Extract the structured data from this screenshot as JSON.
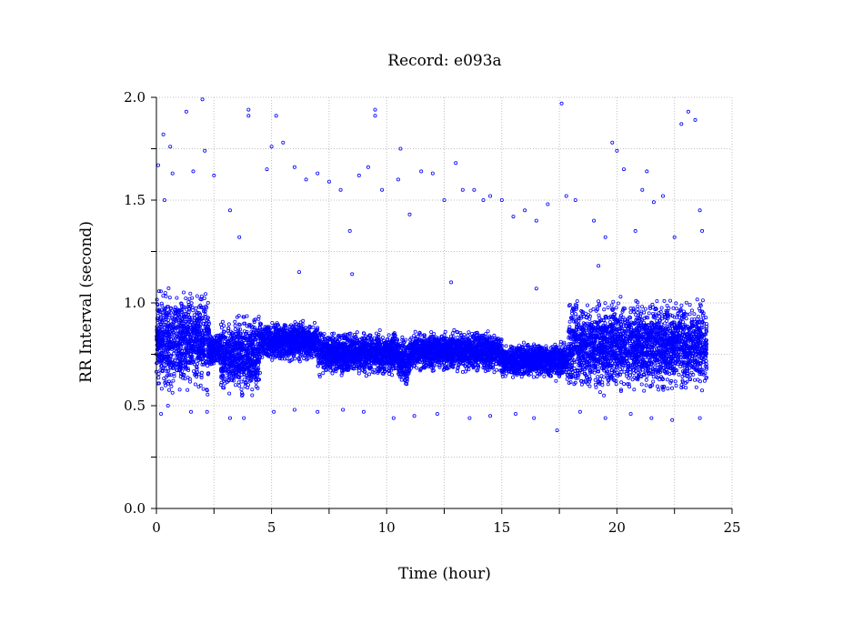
{
  "chart_data": {
    "type": "scatter",
    "title": "Record:  e093a",
    "xlabel": "Time (hour)",
    "ylabel": "RR Interval (second)",
    "xlim": [
      0,
      25
    ],
    "ylim": [
      0,
      2.0
    ],
    "x_ticks": [
      0,
      5,
      10,
      15,
      20,
      25
    ],
    "x_tick_labels": [
      "0",
      "5",
      "10",
      "15",
      "20",
      "25"
    ],
    "y_ticks": [
      0.0,
      0.5,
      1.0,
      1.5,
      2.0
    ],
    "y_tick_labels": [
      "0.0",
      "0.5",
      "1.0",
      "1.5",
      "2.0"
    ],
    "x_minor_step": 2.5,
    "y_minor_step": 0.25,
    "grid": true,
    "marker": "open-circle",
    "color": "#0000ff",
    "x_range_covered": [
      0,
      23.9
    ],
    "dense_band_profile": [
      {
        "x_start": 0.0,
        "x_end": 2.3,
        "y_low": 0.53,
        "y_high": 1.1
      },
      {
        "x_start": 2.3,
        "x_end": 2.8,
        "y_low": 0.68,
        "y_high": 0.86
      },
      {
        "x_start": 2.8,
        "x_end": 4.5,
        "y_low": 0.52,
        "y_high": 0.98
      },
      {
        "x_start": 4.5,
        "x_end": 7.0,
        "y_low": 0.7,
        "y_high": 0.92
      },
      {
        "x_start": 7.0,
        "x_end": 10.5,
        "y_low": 0.63,
        "y_high": 0.88
      },
      {
        "x_start": 10.5,
        "x_end": 11.0,
        "y_low": 0.58,
        "y_high": 0.86
      },
      {
        "x_start": 11.0,
        "x_end": 15.0,
        "y_low": 0.65,
        "y_high": 0.88
      },
      {
        "x_start": 15.0,
        "x_end": 17.9,
        "y_low": 0.62,
        "y_high": 0.82
      },
      {
        "x_start": 17.9,
        "x_end": 23.9,
        "y_low": 0.53,
        "y_high": 1.05
      }
    ],
    "outlier_points": [
      [
        0.08,
        1.67
      ],
      [
        0.3,
        1.82
      ],
      [
        0.35,
        1.5
      ],
      [
        0.6,
        1.76
      ],
      [
        0.7,
        1.63
      ],
      [
        1.3,
        1.93
      ],
      [
        1.6,
        1.64
      ],
      [
        2.0,
        1.99
      ],
      [
        2.1,
        1.74
      ],
      [
        2.5,
        1.62
      ],
      [
        3.2,
        1.45
      ],
      [
        3.6,
        1.32
      ],
      [
        4.0,
        1.94
      ],
      [
        4.0,
        1.91
      ],
      [
        4.8,
        1.65
      ],
      [
        5.0,
        1.76
      ],
      [
        5.2,
        1.91
      ],
      [
        5.5,
        1.78
      ],
      [
        6.0,
        1.66
      ],
      [
        6.5,
        1.6
      ],
      [
        7.0,
        1.63
      ],
      [
        7.5,
        1.59
      ],
      [
        8.0,
        1.55
      ],
      [
        8.4,
        1.35
      ],
      [
        8.8,
        1.62
      ],
      [
        9.2,
        1.66
      ],
      [
        9.5,
        1.94
      ],
      [
        9.5,
        1.91
      ],
      [
        9.8,
        1.55
      ],
      [
        10.5,
        1.6
      ],
      [
        10.6,
        1.75
      ],
      [
        11.0,
        1.43
      ],
      [
        11.5,
        1.64
      ],
      [
        12.0,
        1.63
      ],
      [
        12.5,
        1.5
      ],
      [
        13.0,
        1.68
      ],
      [
        13.3,
        1.55
      ],
      [
        13.8,
        1.55
      ],
      [
        14.2,
        1.5
      ],
      [
        14.5,
        1.52
      ],
      [
        15.0,
        1.5
      ],
      [
        15.5,
        1.42
      ],
      [
        16.0,
        1.45
      ],
      [
        16.5,
        1.4
      ],
      [
        17.0,
        1.48
      ],
      [
        17.6,
        1.97
      ],
      [
        17.8,
        1.52
      ],
      [
        18.2,
        1.5
      ],
      [
        19.0,
        1.4
      ],
      [
        19.5,
        1.32
      ],
      [
        19.8,
        1.78
      ],
      [
        20.0,
        1.74
      ],
      [
        20.3,
        1.65
      ],
      [
        20.8,
        1.35
      ],
      [
        21.1,
        1.55
      ],
      [
        21.3,
        1.64
      ],
      [
        21.6,
        1.49
      ],
      [
        22.0,
        1.52
      ],
      [
        22.5,
        1.32
      ],
      [
        22.8,
        1.87
      ],
      [
        23.1,
        1.93
      ],
      [
        23.4,
        1.89
      ],
      [
        23.6,
        1.45
      ],
      [
        23.7,
        1.35
      ],
      [
        0.2,
        0.46
      ],
      [
        0.5,
        0.5
      ],
      [
        1.5,
        0.47
      ],
      [
        2.2,
        0.47
      ],
      [
        3.2,
        0.44
      ],
      [
        3.8,
        0.44
      ],
      [
        5.1,
        0.47
      ],
      [
        6.0,
        0.48
      ],
      [
        7.0,
        0.47
      ],
      [
        8.1,
        0.48
      ],
      [
        9.0,
        0.47
      ],
      [
        10.3,
        0.44
      ],
      [
        11.2,
        0.45
      ],
      [
        12.2,
        0.46
      ],
      [
        13.6,
        0.44
      ],
      [
        14.5,
        0.45
      ],
      [
        15.6,
        0.46
      ],
      [
        16.4,
        0.44
      ],
      [
        17.4,
        0.38
      ],
      [
        18.4,
        0.47
      ],
      [
        19.5,
        0.44
      ],
      [
        20.6,
        0.46
      ],
      [
        21.5,
        0.44
      ],
      [
        22.4,
        0.43
      ],
      [
        23.6,
        0.44
      ],
      [
        6.2,
        1.15
      ],
      [
        8.5,
        1.14
      ],
      [
        12.8,
        1.1
      ],
      [
        16.5,
        1.07
      ],
      [
        19.2,
        1.18
      ]
    ]
  }
}
